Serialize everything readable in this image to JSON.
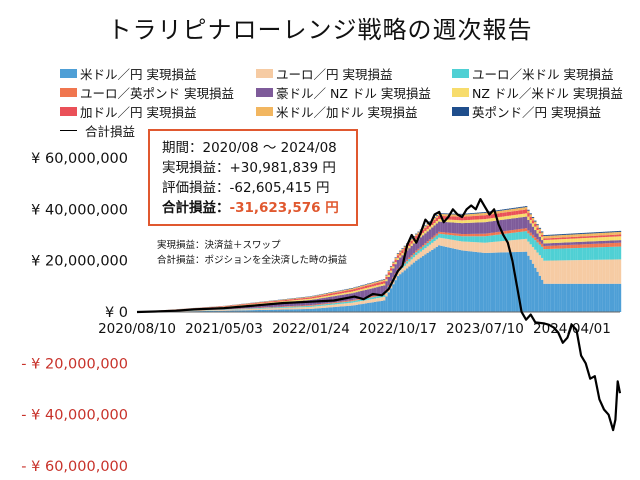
{
  "title": "トラリピナローレンジ戦略の週次報告",
  "legend": [
    {
      "label": "米ドル／円 実現損益",
      "color": "#4e9fd6"
    },
    {
      "label": "ユーロ／円 実現損益",
      "color": "#f6cba3"
    },
    {
      "label": "ユーロ／米ドル 実現損益",
      "color": "#4fd0d4"
    },
    {
      "label": "ユーロ／英ポンド 実現損益",
      "color": "#f0764f"
    },
    {
      "label": "豪ドル／ NZ ドル 実現損益",
      "color": "#7e5b9a"
    },
    {
      "label": "NZ ドル／米ドル 実現損益",
      "color": "#f7dc6c"
    },
    {
      "label": "加ドル／円 実現損益",
      "color": "#ea5058"
    },
    {
      "label": "米ドル／加ドル 実現損益",
      "color": "#f2b660"
    },
    {
      "label": "英ポンド／円 実現損益",
      "color": "#1f4e8c"
    },
    {
      "label": "合計損益",
      "color": "#000000",
      "line": true
    }
  ],
  "info": {
    "period_label": "期間：",
    "period_value": "2020/08 ～ 2024/08",
    "realized_label": "実現損益：",
    "realized_value": "+30,981,839 円",
    "unrealized_label": "評価損益：",
    "unrealized_value": "-62,605,415 円",
    "total_label": "合計損益：",
    "total_value": "-31,623,576 円"
  },
  "notes": {
    "realized": "実現損益：決済益＋スワップ",
    "total": "合計損益：ポジションを全決済した時の損益"
  },
  "chart_data": {
    "type": "bar",
    "stacked": true,
    "title": "トラリピナローレンジ戦略の週次報告",
    "y_tick_labels": [
      "¥ 60,000,000",
      "¥ 40,000,000",
      "¥ 20,000,000",
      "¥ 0",
      "- ¥ 20,000,000",
      "- ¥ 40,000,000",
      "- ¥ 60,000,000"
    ],
    "y_ticks": [
      60000000,
      40000000,
      20000000,
      0,
      -20000000,
      -40000000,
      -60000000
    ],
    "ylim": [
      -60000000,
      60000000
    ],
    "x_tick_labels": [
      "2020/08/10",
      "2021/05/03",
      "2022/01/24",
      "2022/10/17",
      "2023/07/10",
      "2024/04/01"
    ],
    "x_tick_dates": [
      "2020-08-10",
      "2021-05-03",
      "2022-01-24",
      "2022-10-17",
      "2023-07-10",
      "2024-04-01"
    ],
    "xlim": [
      "2020-08-10",
      "2024-08-26"
    ],
    "series": [
      {
        "name": "米ドル／円 実現損益",
        "color": "#4e9fd6",
        "points": [
          [
            "2020-08-10",
            0
          ],
          [
            "2021-05-03",
            500000
          ],
          [
            "2022-01-24",
            1200000
          ],
          [
            "2022-05-30",
            2500000
          ],
          [
            "2022-09-05",
            4500000
          ],
          [
            "2022-10-17",
            14000000
          ],
          [
            "2022-12-12",
            20000000
          ],
          [
            "2023-02-20",
            26000000
          ],
          [
            "2023-05-01",
            24000000
          ],
          [
            "2023-07-10",
            23000000
          ],
          [
            "2023-11-13",
            23500000
          ],
          [
            "2024-01-08",
            11000000
          ],
          [
            "2024-08-26",
            11000000
          ]
        ]
      },
      {
        "name": "ユーロ／円 実現損益",
        "color": "#f6cba3",
        "points": [
          [
            "2020-08-10",
            0
          ],
          [
            "2021-05-03",
            300000
          ],
          [
            "2022-01-24",
            800000
          ],
          [
            "2022-10-17",
            1500000
          ],
          [
            "2023-02-20",
            3000000
          ],
          [
            "2023-07-10",
            4000000
          ],
          [
            "2023-11-13",
            5000000
          ],
          [
            "2024-01-08",
            9000000
          ],
          [
            "2024-08-26",
            9500000
          ]
        ]
      },
      {
        "name": "ユーロ／米ドル 実現損益",
        "color": "#4fd0d4",
        "points": [
          [
            "2020-08-10",
            0
          ],
          [
            "2021-05-03",
            150000
          ],
          [
            "2022-01-24",
            400000
          ],
          [
            "2022-10-17",
            800000
          ],
          [
            "2023-02-20",
            1500000
          ],
          [
            "2023-07-10",
            2500000
          ],
          [
            "2023-11-13",
            3000000
          ],
          [
            "2024-01-08",
            4500000
          ],
          [
            "2024-08-26",
            5000000
          ]
        ]
      },
      {
        "name": "ユーロ／英ポンド 実現損益",
        "color": "#f0764f",
        "points": [
          [
            "2020-08-10",
            0
          ],
          [
            "2021-05-03",
            100000
          ],
          [
            "2022-01-24",
            300000
          ],
          [
            "2022-10-17",
            500000
          ],
          [
            "2023-07-10",
            1000000
          ],
          [
            "2024-08-26",
            1500000
          ]
        ]
      },
      {
        "name": "豪ドル／ NZ ドル 実現損益",
        "color": "#7e5b9a",
        "points": [
          [
            "2020-08-10",
            0
          ],
          [
            "2021-05-03",
            800000
          ],
          [
            "2022-01-24",
            2000000
          ],
          [
            "2022-10-17",
            3500000
          ],
          [
            "2023-02-20",
            4000000
          ],
          [
            "2023-07-10",
            4500000
          ],
          [
            "2023-11-13",
            4500000
          ],
          [
            "2024-01-08",
            1000000
          ],
          [
            "2024-08-26",
            1000000
          ]
        ]
      },
      {
        "name": "NZ ドル／米ドル 実現損益",
        "color": "#f7dc6c",
        "points": [
          [
            "2020-08-10",
            0
          ],
          [
            "2021-05-03",
            200000
          ],
          [
            "2022-01-24",
            500000
          ],
          [
            "2022-10-17",
            800000
          ],
          [
            "2023-07-10",
            1200000
          ],
          [
            "2024-08-26",
            1500000
          ]
        ]
      },
      {
        "name": "加ドル／円 実現損益",
        "color": "#ea5058",
        "points": [
          [
            "2020-08-10",
            0
          ],
          [
            "2021-05-03",
            200000
          ],
          [
            "2022-01-24",
            500000
          ],
          [
            "2022-10-17",
            1000000
          ],
          [
            "2023-07-10",
            1500000
          ],
          [
            "2023-11-13",
            1500000
          ],
          [
            "2024-01-08",
            600000
          ],
          [
            "2024-08-26",
            700000
          ]
        ]
      },
      {
        "name": "米ドル／加ドル 実現損益",
        "color": "#f2b660",
        "points": [
          [
            "2020-08-10",
            0
          ],
          [
            "2021-05-03",
            100000
          ],
          [
            "2022-01-24",
            300000
          ],
          [
            "2022-10-17",
            600000
          ],
          [
            "2023-07-10",
            900000
          ],
          [
            "2024-08-26",
            1000000
          ]
        ]
      },
      {
        "name": "英ポンド／円 実現損益",
        "color": "#1f4e8c",
        "points": [
          [
            "2020-08-10",
            0
          ],
          [
            "2021-05-03",
            50000
          ],
          [
            "2022-01-24",
            150000
          ],
          [
            "2022-10-17",
            250000
          ],
          [
            "2023-07-10",
            350000
          ],
          [
            "2024-08-26",
            400000
          ]
        ]
      },
      {
        "name": "合計損益",
        "color": "#000000",
        "type": "line",
        "points": [
          [
            "2020-08-10",
            0
          ],
          [
            "2020-10-05",
            200000
          ],
          [
            "2020-12-07",
            500000
          ],
          [
            "2021-02-01",
            1000000
          ],
          [
            "2021-05-03",
            1500000
          ],
          [
            "2021-08-02",
            2500000
          ],
          [
            "2021-11-01",
            3500000
          ],
          [
            "2022-01-24",
            4000000
          ],
          [
            "2022-04-04",
            4500000
          ],
          [
            "2022-06-06",
            6000000
          ],
          [
            "2022-07-04",
            5000000
          ],
          [
            "2022-08-01",
            7000000
          ],
          [
            "2022-08-29",
            6500000
          ],
          [
            "2022-09-19",
            9000000
          ],
          [
            "2022-10-17",
            16000000
          ],
          [
            "2022-10-31",
            18000000
          ],
          [
            "2022-11-14",
            26000000
          ],
          [
            "2022-11-28",
            30000000
          ],
          [
            "2022-12-12",
            27000000
          ],
          [
            "2022-12-26",
            31000000
          ],
          [
            "2023-01-09",
            36000000
          ],
          [
            "2023-01-23",
            34000000
          ],
          [
            "2023-02-06",
            38000000
          ],
          [
            "2023-02-20",
            39000000
          ],
          [
            "2023-03-06",
            35000000
          ],
          [
            "2023-03-20",
            37000000
          ],
          [
            "2023-04-03",
            40000000
          ],
          [
            "2023-04-17",
            38000000
          ],
          [
            "2023-05-01",
            37000000
          ],
          [
            "2023-05-15",
            40000000
          ],
          [
            "2023-05-29",
            41500000
          ],
          [
            "2023-06-12",
            40000000
          ],
          [
            "2023-06-26",
            44000000
          ],
          [
            "2023-07-10",
            41000000
          ],
          [
            "2023-07-24",
            38000000
          ],
          [
            "2023-08-07",
            40000000
          ],
          [
            "2023-08-21",
            34000000
          ],
          [
            "2023-09-04",
            30000000
          ],
          [
            "2023-09-18",
            27000000
          ],
          [
            "2023-10-02",
            20000000
          ],
          [
            "2023-10-16",
            10000000
          ],
          [
            "2023-10-30",
            0
          ],
          [
            "2023-11-13",
            -3000000
          ],
          [
            "2023-11-27",
            -1000000
          ],
          [
            "2023-12-11",
            -4000000
          ],
          [
            "2024-01-08",
            -4500000
          ],
          [
            "2024-01-22",
            -5000000
          ],
          [
            "2024-02-05",
            -6000000
          ],
          [
            "2024-02-19",
            -8000000
          ],
          [
            "2024-03-04",
            -12000000
          ],
          [
            "2024-03-18",
            -10000000
          ],
          [
            "2024-04-01",
            -5000000
          ],
          [
            "2024-04-15",
            -7000000
          ],
          [
            "2024-04-29",
            -17000000
          ],
          [
            "2024-05-13",
            -20000000
          ],
          [
            "2024-05-27",
            -26000000
          ],
          [
            "2024-06-10",
            -25000000
          ],
          [
            "2024-06-24",
            -34000000
          ],
          [
            "2024-07-08",
            -38000000
          ],
          [
            "2024-07-22",
            -40000000
          ],
          [
            "2024-08-05",
            -46000000
          ],
          [
            "2024-08-12",
            -42000000
          ],
          [
            "2024-08-19",
            -27000000
          ],
          [
            "2024-08-26",
            -31623576
          ]
        ]
      }
    ]
  }
}
